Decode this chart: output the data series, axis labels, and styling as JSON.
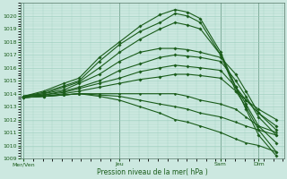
{
  "background_color": "#cce8e0",
  "plot_bg_color": "#cce8e0",
  "grid_color": "#99ccbb",
  "line_color": "#1a5c1a",
  "xlabel": "Pression niveau de la mer( hPa )",
  "ylim": [
    1009,
    1021
  ],
  "yticks": [
    1009,
    1010,
    1011,
    1012,
    1013,
    1014,
    1015,
    1016,
    1017,
    1018,
    1019,
    1020
  ],
  "xtick_labels": [
    "Mer/Ven",
    "Jeu",
    "Sam",
    "Dim"
  ],
  "xtick_positions": [
    0.0,
    0.38,
    0.78,
    0.93
  ],
  "vlines": [
    0.0,
    0.38,
    0.78,
    0.93
  ],
  "series": [
    {
      "x": [
        0.0,
        0.08,
        0.16,
        0.22,
        0.3,
        0.38,
        0.46,
        0.54,
        0.6,
        0.65,
        0.7,
        0.78,
        0.84,
        0.88,
        0.93,
        1.0
      ],
      "y": [
        1013.8,
        1014.2,
        1014.8,
        1015.2,
        1016.8,
        1018.0,
        1019.2,
        1020.1,
        1020.5,
        1020.3,
        1019.8,
        1017.2,
        1014.5,
        1012.8,
        1010.8,
        1009.2
      ],
      "lw": 0.8,
      "ms": 1.8
    },
    {
      "x": [
        0.0,
        0.08,
        0.16,
        0.22,
        0.3,
        0.38,
        0.46,
        0.54,
        0.6,
        0.65,
        0.7,
        0.78,
        0.84,
        0.88,
        0.93,
        1.0
      ],
      "y": [
        1013.8,
        1014.1,
        1014.6,
        1015.0,
        1016.5,
        1017.8,
        1018.8,
        1019.5,
        1020.2,
        1020.0,
        1019.5,
        1017.0,
        1014.2,
        1013.0,
        1011.2,
        1009.5
      ],
      "lw": 0.8,
      "ms": 1.8
    },
    {
      "x": [
        0.0,
        0.08,
        0.16,
        0.22,
        0.3,
        0.38,
        0.46,
        0.54,
        0.6,
        0.65,
        0.7,
        0.78,
        0.84,
        0.88,
        0.93,
        1.0
      ],
      "y": [
        1013.8,
        1014.0,
        1014.5,
        1014.9,
        1016.0,
        1017.2,
        1018.2,
        1019.0,
        1019.5,
        1019.3,
        1019.0,
        1017.0,
        1014.5,
        1013.2,
        1011.5,
        1010.2
      ],
      "lw": 0.8,
      "ms": 1.8
    },
    {
      "x": [
        0.0,
        0.08,
        0.16,
        0.22,
        0.3,
        0.38,
        0.46,
        0.54,
        0.6,
        0.65,
        0.7,
        0.78,
        0.84,
        0.88,
        0.93,
        1.0
      ],
      "y": [
        1013.8,
        1014.0,
        1014.3,
        1014.8,
        1015.5,
        1016.5,
        1017.2,
        1017.5,
        1017.5,
        1017.4,
        1017.2,
        1016.8,
        1015.5,
        1014.2,
        1012.5,
        1011.2
      ],
      "lw": 0.8,
      "ms": 1.8
    },
    {
      "x": [
        0.0,
        0.08,
        0.16,
        0.22,
        0.3,
        0.38,
        0.46,
        0.54,
        0.6,
        0.65,
        0.7,
        0.78,
        0.84,
        0.88,
        0.93,
        1.0
      ],
      "y": [
        1013.8,
        1013.9,
        1014.2,
        1014.5,
        1015.0,
        1015.8,
        1016.3,
        1016.8,
        1017.0,
        1016.9,
        1016.8,
        1016.5,
        1015.0,
        1013.8,
        1012.2,
        1010.8
      ],
      "lw": 0.8,
      "ms": 1.8
    },
    {
      "x": [
        0.0,
        0.08,
        0.16,
        0.22,
        0.3,
        0.38,
        0.46,
        0.54,
        0.6,
        0.65,
        0.7,
        0.78,
        0.84,
        0.88,
        0.93,
        1.0
      ],
      "y": [
        1013.8,
        1013.9,
        1014.1,
        1014.4,
        1014.8,
        1015.2,
        1015.7,
        1016.0,
        1016.2,
        1016.1,
        1016.0,
        1015.8,
        1014.5,
        1013.5,
        1012.5,
        1011.5
      ],
      "lw": 0.8,
      "ms": 1.8
    },
    {
      "x": [
        0.0,
        0.08,
        0.16,
        0.22,
        0.3,
        0.38,
        0.46,
        0.54,
        0.6,
        0.65,
        0.7,
        0.78,
        0.84,
        0.88,
        0.93,
        1.0
      ],
      "y": [
        1013.7,
        1013.8,
        1014.0,
        1014.2,
        1014.5,
        1014.8,
        1015.1,
        1015.3,
        1015.5,
        1015.5,
        1015.4,
        1015.2,
        1014.2,
        1013.5,
        1012.8,
        1012.0
      ],
      "lw": 0.8,
      "ms": 1.8
    },
    {
      "x": [
        0.0,
        0.08,
        0.16,
        0.22,
        0.3,
        0.38,
        0.46,
        0.54,
        0.6,
        0.65,
        0.7,
        0.78,
        0.84,
        0.88,
        0.93,
        1.0
      ],
      "y": [
        1013.7,
        1013.8,
        1013.9,
        1014.0,
        1014.0,
        1014.0,
        1014.0,
        1014.0,
        1014.0,
        1013.8,
        1013.5,
        1013.2,
        1012.8,
        1012.2,
        1011.5,
        1011.0
      ],
      "lw": 0.8,
      "ms": 1.5
    },
    {
      "x": [
        0.0,
        0.08,
        0.16,
        0.22,
        0.3,
        0.38,
        0.46,
        0.54,
        0.6,
        0.65,
        0.7,
        0.78,
        0.84,
        0.88,
        0.93,
        1.0
      ],
      "y": [
        1013.7,
        1013.8,
        1013.9,
        1014.0,
        1013.9,
        1013.8,
        1013.5,
        1013.2,
        1013.0,
        1012.8,
        1012.5,
        1012.2,
        1011.8,
        1011.5,
        1011.2,
        1010.8
      ],
      "lw": 0.8,
      "ms": 1.5
    },
    {
      "x": [
        0.0,
        0.08,
        0.16,
        0.22,
        0.3,
        0.38,
        0.46,
        0.54,
        0.6,
        0.65,
        0.7,
        0.78,
        0.84,
        0.88,
        0.93,
        1.0
      ],
      "y": [
        1013.7,
        1013.8,
        1013.9,
        1014.0,
        1013.8,
        1013.5,
        1013.0,
        1012.5,
        1012.0,
        1011.8,
        1011.5,
        1011.0,
        1010.5,
        1010.2,
        1010.0,
        1009.5
      ],
      "lw": 0.8,
      "ms": 1.5
    }
  ]
}
